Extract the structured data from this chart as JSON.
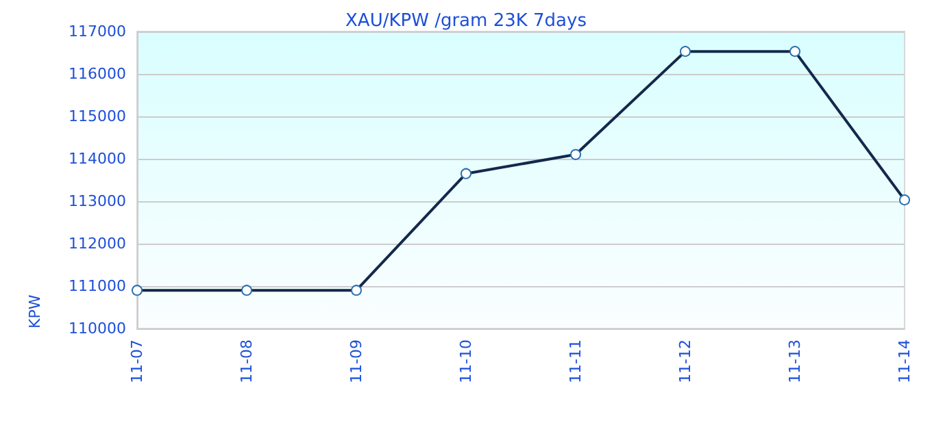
{
  "chart_data": {
    "type": "line",
    "title": "XAU/KPW /gram 23K 7days",
    "ylabel": "KPW",
    "categories": [
      "11-07",
      "11-08",
      "11-09",
      "11-10",
      "11-11",
      "11-12",
      "11-13",
      "11-14"
    ],
    "series": [
      {
        "color": "#14284b",
        "values": [
          110900,
          110900,
          110900,
          113650,
          114100,
          116530,
          116530,
          113030
        ]
      }
    ],
    "ylim": [
      110000,
      117000
    ],
    "yticks": [
      110000,
      111000,
      112000,
      113000,
      114000,
      115000,
      116000,
      117000
    ],
    "grid": "y",
    "marker": "circle",
    "line_style": "solid"
  }
}
